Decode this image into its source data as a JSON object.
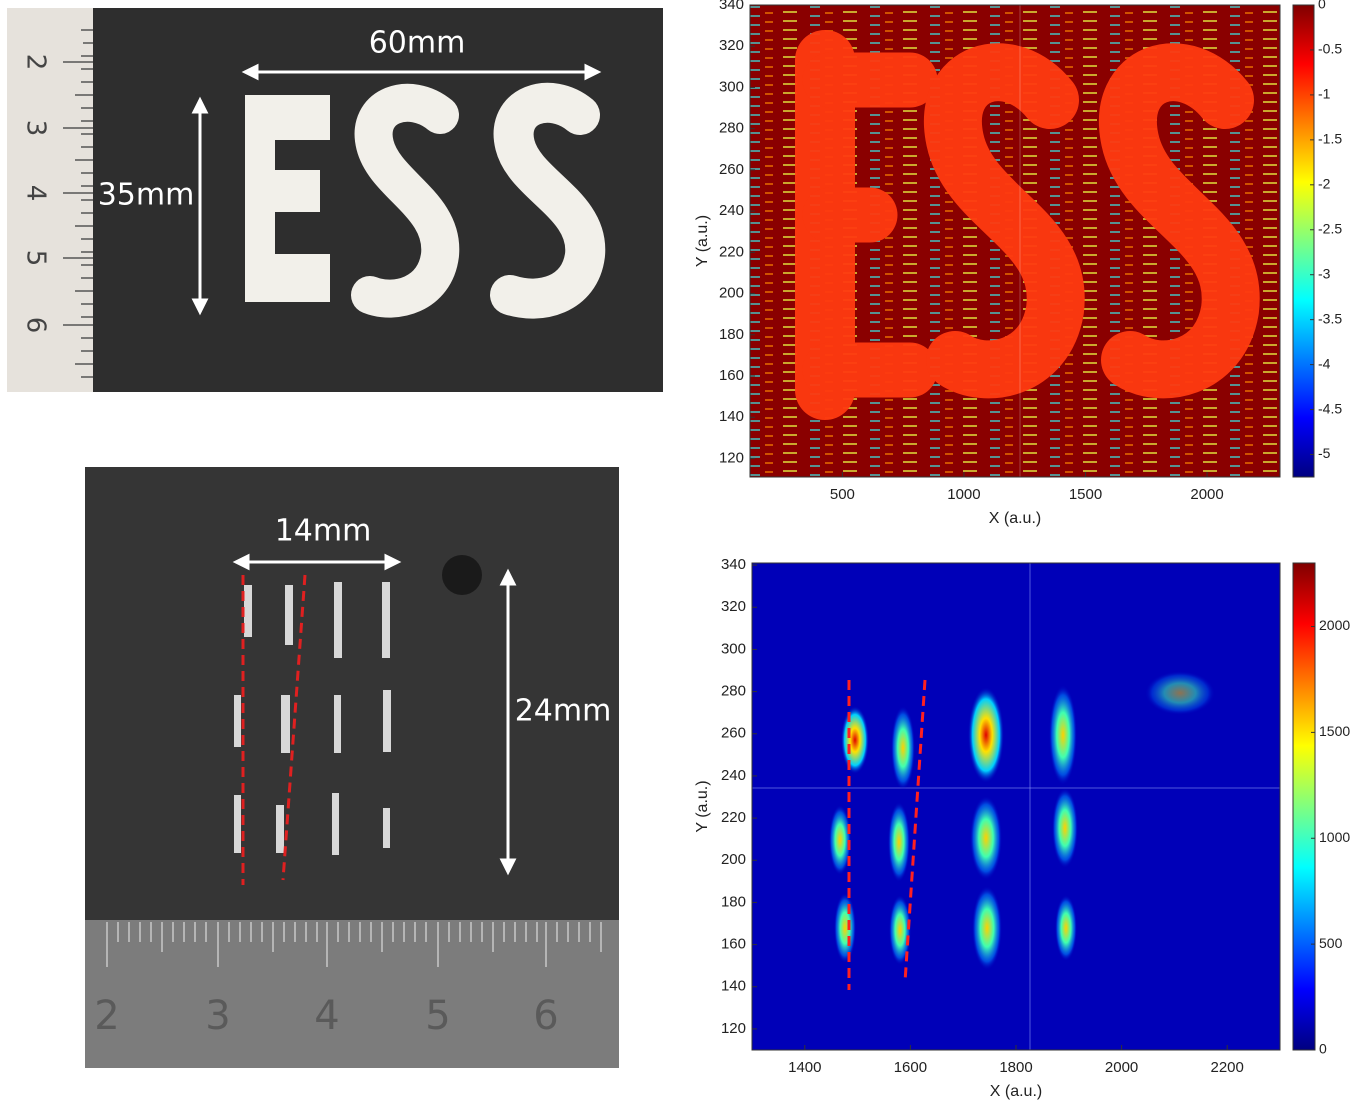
{
  "photos": {
    "top": {
      "width_label": "60mm",
      "height_label": "35mm",
      "ruler_labels": [
        "2",
        "3",
        "4",
        "5",
        "6"
      ]
    },
    "bottom": {
      "width_label": "14mm",
      "height_label": "24mm",
      "ruler_labels": [
        "2",
        "3",
        "4",
        "5",
        "6"
      ]
    }
  },
  "chart_data": [
    {
      "type": "heatmap",
      "xlabel": "X (a.u.)",
      "ylabel": "Y (a.u.)",
      "colormap": "jet",
      "xlim": [
        120,
        2300
      ],
      "xticks": [
        500,
        1000,
        1500,
        2000
      ],
      "ylim": [
        111,
        340
      ],
      "yticks": [
        120,
        140,
        160,
        180,
        200,
        220,
        240,
        260,
        280,
        300,
        320,
        340
      ],
      "clim": [
        -5.25,
        0
      ],
      "cticks": [
        0,
        -0.5,
        -1,
        -1.5,
        -2,
        -2.5,
        -3,
        -3.5,
        -4,
        -4.5,
        -5
      ]
    },
    {
      "type": "heatmap",
      "xlabel": "X (a.u.)",
      "ylabel": "Y (a.u.)",
      "colormap": "jet",
      "xlim": [
        1300,
        2300
      ],
      "xticks": [
        1400,
        1600,
        1800,
        2000,
        2200
      ],
      "ylim": [
        110,
        341
      ],
      "yticks": [
        120,
        140,
        160,
        180,
        200,
        220,
        240,
        260,
        280,
        300,
        320,
        340
      ],
      "clim": [
        0,
        2300
      ],
      "cticks": [
        0,
        500,
        1000,
        1500,
        2000
      ]
    }
  ]
}
